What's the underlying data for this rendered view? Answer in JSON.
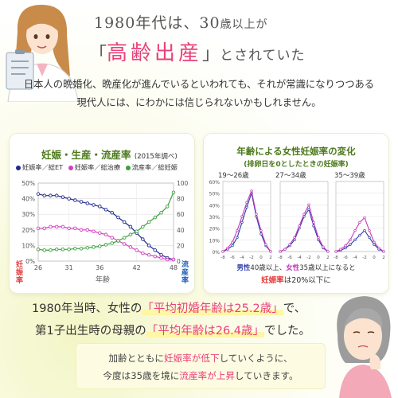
{
  "header": {
    "line1_a": "1980年代は、30",
    "line1_b": "歳以上が",
    "line2_open": "「",
    "line2_highlight": "高齢出産",
    "line2_close": "」",
    "line2_rest": "とされていた"
  },
  "intro": {
    "line1": "日本人の晩婚化、晩産化が進んでいるといわれても、それが常識になりつつある",
    "line2": "現代人には、にわかには信じられないかもしれません。"
  },
  "left_panel": {
    "title": "妊娠・生産・流産率",
    "title_note": "(2015年調べ)",
    "legend": [
      {
        "label": "妊娠率／総ET",
        "color": "#1f2a8c"
      },
      {
        "label": "妊娠率／総治療",
        "color": "#d23fbf"
      },
      {
        "label": "流産率／総妊娠",
        "color": "#3aa23a"
      }
    ],
    "left_axis_label": [
      "妊",
      "娠",
      "率"
    ],
    "right_axis_label": [
      "流",
      "産",
      "率"
    ],
    "xlabel": "年齢",
    "left_ticks": [
      "50%",
      "40%",
      "30%",
      "20%",
      "10%",
      "0%"
    ],
    "right_ticks": [
      "100",
      "80",
      "60",
      "40",
      "20",
      "0"
    ],
    "x_ticks": [
      "26",
      "31",
      "36",
      "42",
      "48"
    ]
  },
  "right_panel": {
    "title": "年齢による女性妊娠率の変化",
    "subtitle": "(排卵日を0としたときの妊娠率)",
    "groups": [
      "19～26歳",
      "27～34歳",
      "35～39歳"
    ],
    "y_ticks": [
      "60%",
      "50%",
      "40%",
      "30%",
      "20%",
      "10%",
      "0%"
    ],
    "x_ticks": [
      "-8",
      "-6",
      "-4",
      "-2",
      "0",
      "2"
    ],
    "foot1_a": "男性",
    "foot1_b": "40歳以上、",
    "foot1_c": "女性",
    "foot1_d": "35歳以上になると",
    "foot2_a": "妊娠率",
    "foot2_b": "は20%以下に"
  },
  "bottom": {
    "line1_a": "1980年当時、女性の",
    "line1_hl": "「平均初婚年齢は25.2歳」",
    "line1_b": "で、",
    "line2_a": "第1子出生時の母親の",
    "line2_hl": "「平均年齢は26.4歳」",
    "line2_b": "でした。",
    "note1_a": "加齢とともに",
    "note1_pk": "妊娠率が低下",
    "note1_b": "していくように、",
    "note2_a": "今度は35歳を境に",
    "note2_pk": "流産率が上昇",
    "note2_b": "していきます。"
  },
  "chart_data": [
    {
      "type": "line",
      "title": "妊娠・生産・流産率",
      "xlabel": "年齢",
      "ylabel": "妊娠率",
      "y2label": "流産率",
      "x": [
        26,
        27,
        28,
        29,
        30,
        31,
        32,
        33,
        34,
        35,
        36,
        37,
        38,
        39,
        40,
        41,
        42,
        43,
        44,
        45,
        46,
        47,
        48
      ],
      "xlim": [
        26,
        48
      ],
      "ylim": [
        0,
        50
      ],
      "y2lim": [
        0,
        100
      ],
      "series": [
        {
          "name": "妊娠率／総ET",
          "axis": "left",
          "color": "#1f2a8c",
          "values": [
            43,
            42,
            42,
            42,
            41,
            40,
            39,
            38,
            37,
            36,
            35,
            33,
            31,
            28,
            25,
            22,
            18,
            14,
            10,
            7,
            4,
            2,
            1
          ]
        },
        {
          "name": "妊娠率／総治療",
          "axis": "left",
          "color": "#d23fbf",
          "values": [
            21,
            21,
            22,
            22,
            22,
            21,
            21,
            20,
            20,
            19,
            18,
            17,
            15,
            13,
            11,
            9,
            7,
            5,
            4,
            3,
            2,
            1,
            1
          ]
        },
        {
          "name": "流産率／総妊娠",
          "axis": "right",
          "color": "#3aa23a",
          "values": [
            15,
            14,
            14,
            15,
            15,
            15,
            16,
            16,
            17,
            18,
            19,
            21,
            23,
            26,
            30,
            34,
            38,
            44,
            50,
            56,
            62,
            70,
            88
          ]
        }
      ]
    },
    {
      "type": "line",
      "title": "年齢による女性妊娠率の変化",
      "subtitle": "(排卵日を0としたときの妊娠率)",
      "x": [
        -8,
        -7,
        -6,
        -5,
        -4,
        -3,
        -2,
        -1,
        0,
        1,
        2
      ],
      "ylim": [
        0,
        60
      ],
      "panels": [
        {
          "name": "19～26歳",
          "series": [
            {
              "name": "男性",
              "color": "#2b3aa8",
              "values": [
                0,
                2,
                5,
                12,
                25,
                38,
                50,
                30,
                15,
                5,
                0
              ]
            },
            {
              "name": "女性",
              "color": "#c23ab8",
              "values": [
                0,
                3,
                8,
                18,
                30,
                42,
                52,
                32,
                18,
                6,
                0
              ]
            }
          ]
        },
        {
          "name": "27～34歳",
          "series": [
            {
              "name": "男性",
              "color": "#2b3aa8",
              "values": [
                0,
                2,
                5,
                10,
                20,
                30,
                36,
                22,
                10,
                3,
                0
              ]
            },
            {
              "name": "女性",
              "color": "#c23ab8",
              "values": [
                0,
                2,
                6,
                12,
                22,
                32,
                40,
                25,
                12,
                4,
                0
              ]
            }
          ]
        },
        {
          "name": "35～39歳",
          "series": [
            {
              "name": "男性",
              "color": "#2b3aa8",
              "values": [
                0,
                1,
                3,
                6,
                10,
                14,
                18,
                12,
                6,
                2,
                0
              ]
            },
            {
              "name": "女性",
              "color": "#c23ab8",
              "values": [
                0,
                2,
                5,
                10,
                18,
                25,
                29,
                18,
                8,
                3,
                0
              ]
            }
          ]
        }
      ]
    }
  ]
}
